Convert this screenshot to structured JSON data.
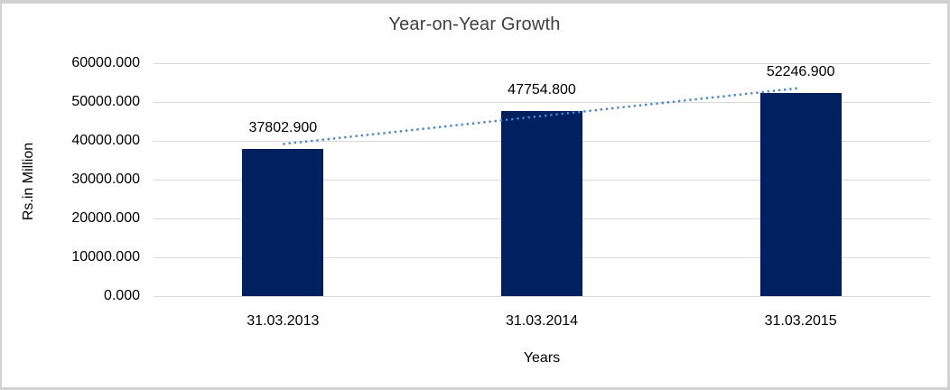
{
  "chart_data": {
    "type": "bar",
    "title": "Year-on-Year Growth",
    "xlabel": "Years",
    "ylabel": "Rs.in Million",
    "categories": [
      "31.03.2013",
      "31.03.2014",
      "31.03.2015"
    ],
    "values": [
      37802.9,
      47754.8,
      52246.9
    ],
    "value_labels": [
      "37802.900",
      "47754.800",
      "52246.900"
    ],
    "ylim": [
      0,
      60000
    ],
    "yticks": [
      {
        "value": 0,
        "label": "0.000"
      },
      {
        "value": 10000,
        "label": "10000.000"
      },
      {
        "value": 20000,
        "label": "20000.000"
      },
      {
        "value": 30000,
        "label": "30000.000"
      },
      {
        "value": 40000,
        "label": "40000.000"
      },
      {
        "value": 50000,
        "label": "50000.000"
      },
      {
        "value": 60000,
        "label": "60000.000"
      }
    ],
    "grid": "horizontal",
    "legend": "none",
    "trendline": {
      "type": "linear",
      "style": "dotted"
    },
    "colors": {
      "bar": "#002060",
      "trendline": "#4a86c8",
      "gridline": "#d9d9d9",
      "title_text": "#404040",
      "axis_text": "#000000",
      "background": "#ffffff",
      "border": "#d2d2d2"
    }
  }
}
